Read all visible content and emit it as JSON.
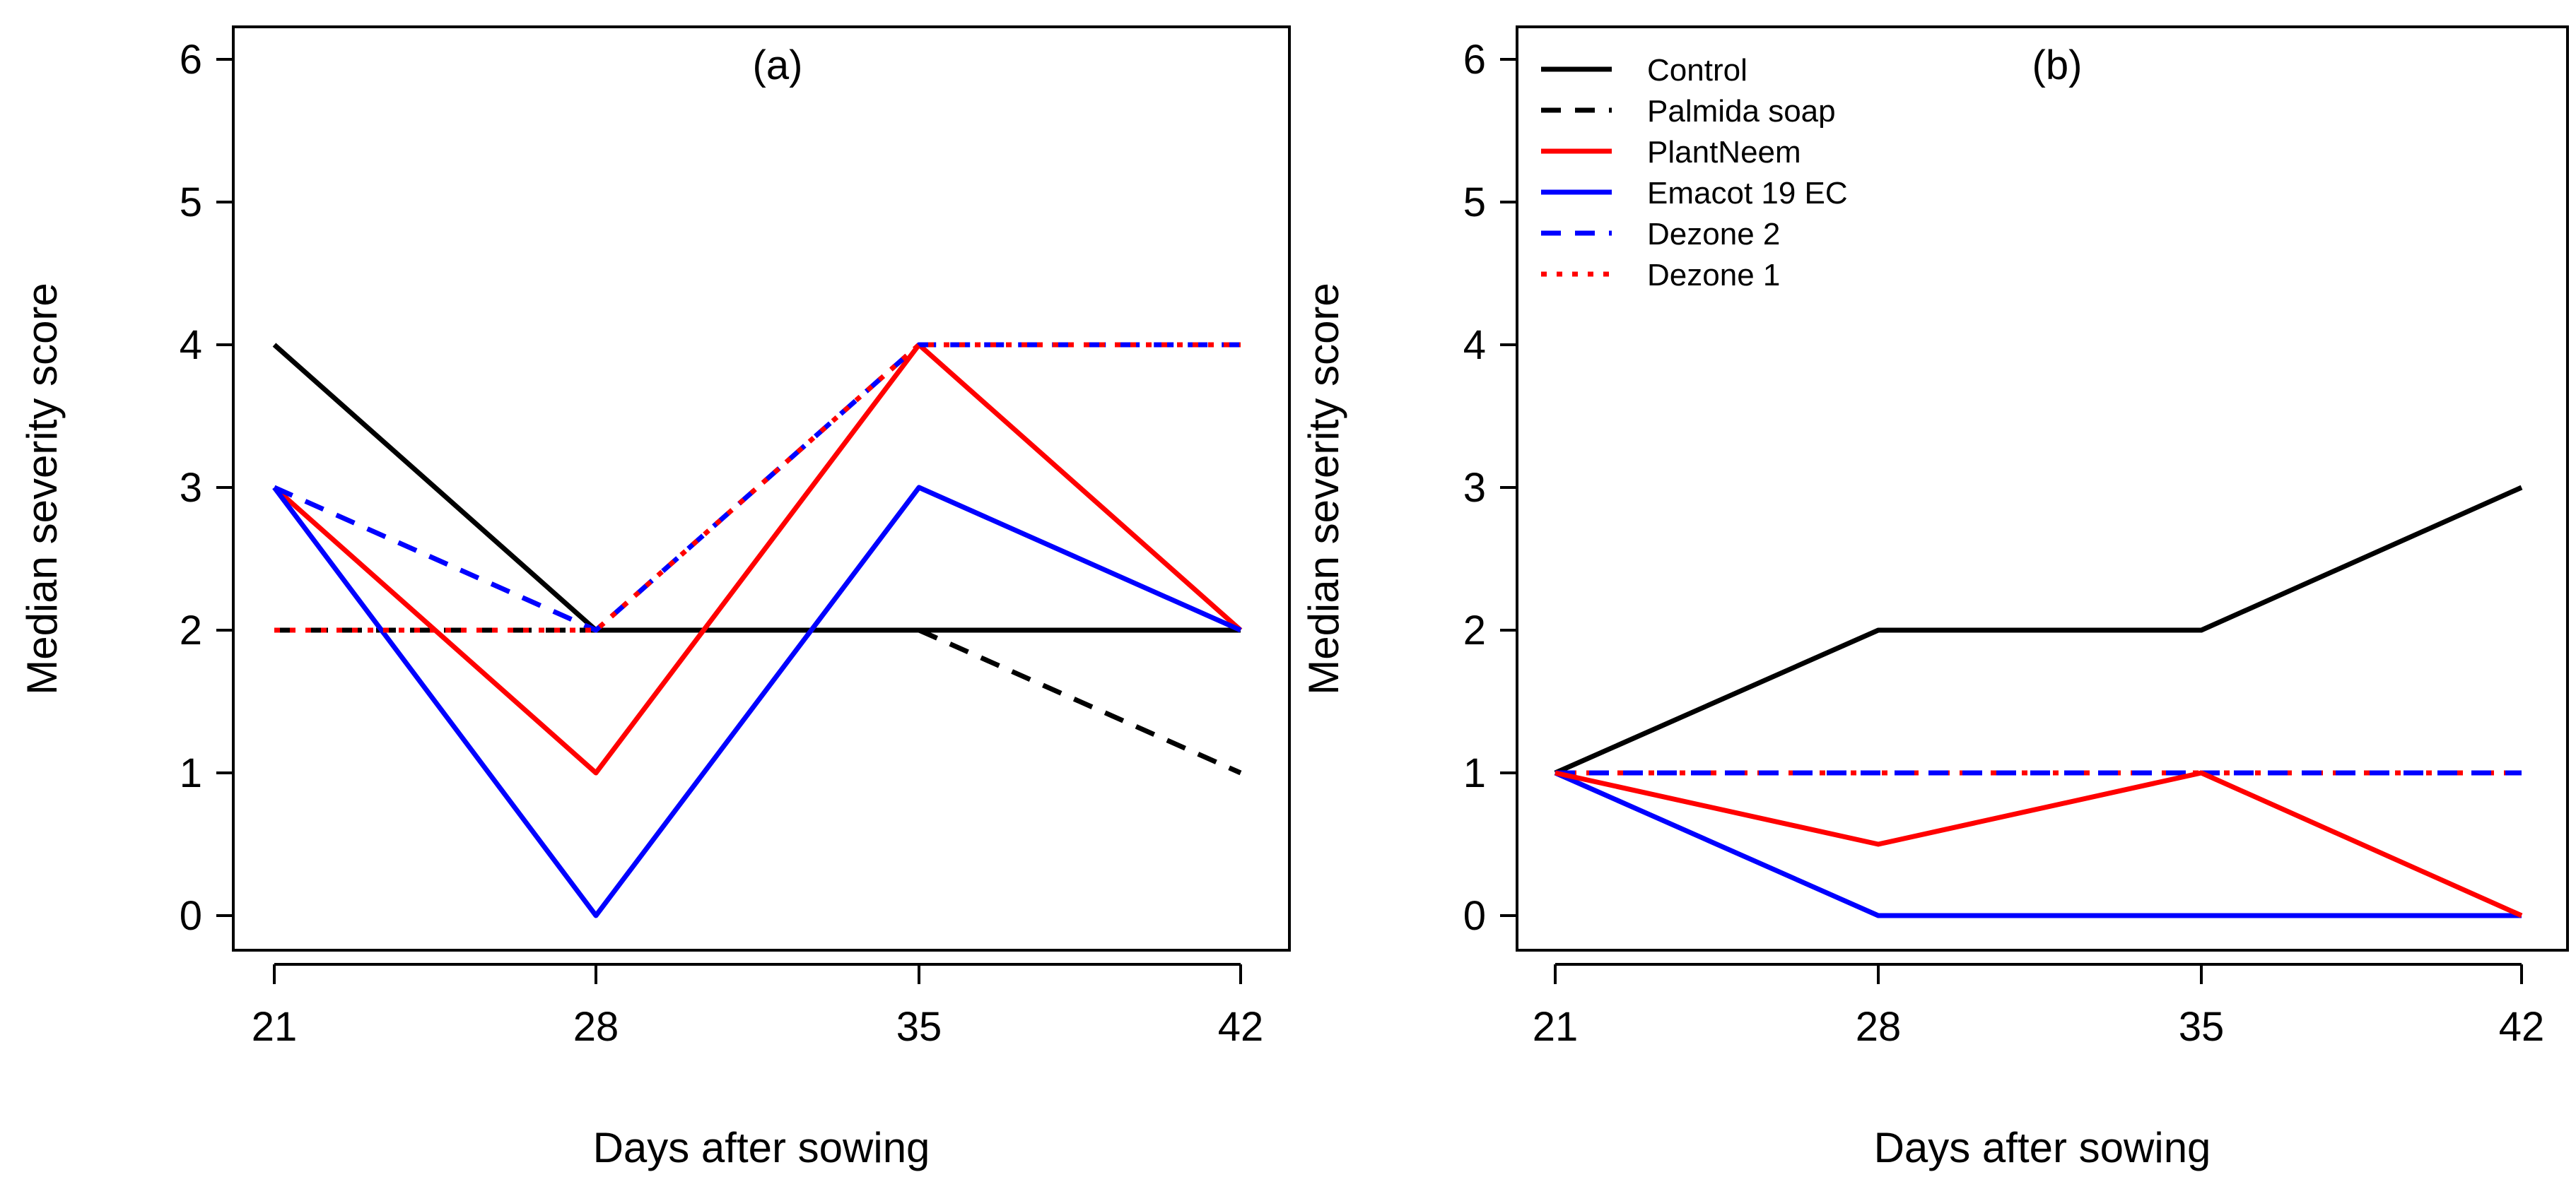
{
  "chart_data": [
    {
      "type": "line",
      "panel_label": "(a)",
      "xlabel": "Days after sowing",
      "ylabel": "Median severity score",
      "x": [
        21,
        28,
        35,
        42
      ],
      "x_tick_labels": [
        "21",
        "28",
        "35",
        "42"
      ],
      "y_ticks": [
        0,
        1,
        2,
        3,
        4,
        5,
        6
      ],
      "y_tick_labels": [
        "0",
        "1",
        "2",
        "3",
        "4",
        "5",
        "6"
      ],
      "ylim": [
        -0.2,
        6.2
      ],
      "grid": false,
      "series": [
        {
          "name": "Control",
          "color": "#000000",
          "dash": "solid",
          "values": [
            4,
            2,
            2,
            2
          ]
        },
        {
          "name": "Palmida soap",
          "color": "#000000",
          "dash": "dashed",
          "values": [
            2,
            2,
            2,
            1
          ]
        },
        {
          "name": "PlantNeem",
          "color": "#ff0000",
          "dash": "solid",
          "values": [
            3,
            1,
            4,
            2
          ]
        },
        {
          "name": "Emacot 19 EC",
          "color": "#0000ff",
          "dash": "solid",
          "values": [
            3,
            0,
            3,
            2
          ]
        },
        {
          "name": "Dezone 2",
          "color": "#0000ff",
          "dash": "dashed",
          "values": [
            3,
            2,
            4,
            4
          ]
        },
        {
          "name": "Dezone 1",
          "color": "#ff0000",
          "dash": "dotted",
          "values": [
            2,
            2,
            4,
            4
          ]
        }
      ]
    },
    {
      "type": "line",
      "panel_label": "(b)",
      "xlabel": "Days after sowing",
      "ylabel": "Median severity score",
      "x": [
        21,
        28,
        35,
        42
      ],
      "x_tick_labels": [
        "21",
        "28",
        "35",
        "42"
      ],
      "y_ticks": [
        0,
        1,
        2,
        3,
        4,
        5,
        6
      ],
      "y_tick_labels": [
        "0",
        "1",
        "2",
        "3",
        "4",
        "5",
        "6"
      ],
      "ylim": [
        -0.2,
        6.2
      ],
      "grid": false,
      "legend_position": "top-left",
      "legend": [
        {
          "name": "Control",
          "color": "#000000",
          "dash": "solid"
        },
        {
          "name": "Palmida soap",
          "color": "#000000",
          "dash": "dashed"
        },
        {
          "name": "PlantNeem",
          "color": "#ff0000",
          "dash": "solid"
        },
        {
          "name": "Emacot 19 EC",
          "color": "#0000ff",
          "dash": "solid"
        },
        {
          "name": "Dezone 2",
          "color": "#0000ff",
          "dash": "dashed"
        },
        {
          "name": "Dezone 1",
          "color": "#ff0000",
          "dash": "dotted"
        }
      ],
      "series": [
        {
          "name": "Control",
          "color": "#000000",
          "dash": "solid",
          "values": [
            1,
            2,
            2,
            3
          ]
        },
        {
          "name": "Palmida soap",
          "color": "#000000",
          "dash": "dashed",
          "values": [
            1,
            1,
            1,
            1
          ]
        },
        {
          "name": "Dezone 1",
          "color": "#ff0000",
          "dash": "dotted",
          "values": [
            1,
            1,
            1,
            1
          ]
        },
        {
          "name": "Dezone 2",
          "color": "#0000ff",
          "dash": "dashed",
          "values": [
            1,
            1,
            1,
            1
          ]
        },
        {
          "name": "Emacot 19 EC",
          "color": "#0000ff",
          "dash": "solid",
          "values": [
            1,
            0,
            0,
            0
          ]
        },
        {
          "name": "PlantNeem",
          "color": "#ff0000",
          "dash": "solid",
          "values": [
            1,
            0.5,
            1,
            0
          ]
        }
      ]
    }
  ]
}
